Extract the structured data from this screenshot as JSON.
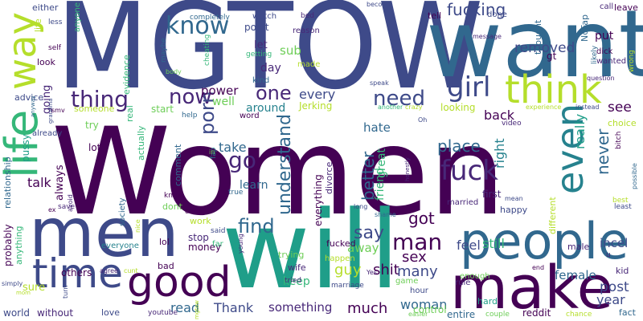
{
  "palette": {
    "background": "#ffffff",
    "deep_purple": "#440154",
    "indigo": "#482878",
    "blue_purple": "#3e4a89",
    "slate_blue": "#31688e",
    "teal": "#26828e",
    "green_teal": "#1f9e89",
    "green": "#35b779",
    "lime": "#6ece58",
    "yellow_green": "#b5de2b",
    "yellow": "#fde725"
  },
  "words": [
    {
      "text": "Women",
      "color": "#440154"
    },
    {
      "text": "MGTOW",
      "color": "#3e4a89"
    },
    {
      "text": "want",
      "color": "#31688e"
    },
    {
      "text": "will",
      "color": "#1f9e89"
    },
    {
      "text": "men",
      "color": "#3e4a89"
    },
    {
      "text": "people",
      "color": "#31688e"
    },
    {
      "text": "make",
      "color": "#440154"
    },
    {
      "text": "good",
      "color": "#440154"
    },
    {
      "text": "time",
      "color": "#3e4a89"
    },
    {
      "text": "life",
      "color": "#35b779"
    },
    {
      "text": "way",
      "color": "#b5de2b"
    },
    {
      "text": "think",
      "color": "#b5de2b"
    },
    {
      "text": "girl",
      "color": "#3e4a89"
    },
    {
      "text": "even",
      "color": "#26828e"
    },
    {
      "text": "know",
      "color": "#31688e"
    },
    {
      "text": "now",
      "color": "#482878"
    },
    {
      "text": "thing",
      "color": "#482878"
    },
    {
      "text": "porn",
      "color": "#3e4a89"
    },
    {
      "text": "one",
      "color": "#482878"
    },
    {
      "text": "need",
      "color": "#3e4a89"
    },
    {
      "text": "fuck",
      "color": "#482878"
    },
    {
      "text": "go",
      "color": "#482878"
    },
    {
      "text": "find",
      "color": "#31688e"
    },
    {
      "text": "man",
      "color": "#440154"
    },
    {
      "text": "say",
      "color": "#3e4a89"
    },
    {
      "text": "got",
      "color": "#440154"
    },
    {
      "text": "fucking",
      "color": "#3e4a89"
    },
    {
      "text": "removed",
      "color": "#3e4a89"
    },
    {
      "text": "understand",
      "color": "#31688e"
    },
    {
      "text": "better",
      "color": "#31688e"
    },
    {
      "text": "place",
      "color": "#31688e"
    },
    {
      "text": "never",
      "color": "#31688e"
    },
    {
      "text": "post",
      "color": "#3e4a89"
    },
    {
      "text": "year",
      "color": "#3e4a89"
    },
    {
      "text": "shit",
      "color": "#440154"
    },
    {
      "text": "many",
      "color": "#3e4a89"
    },
    {
      "text": "guy",
      "color": "#b5de2b"
    },
    {
      "text": "sex",
      "color": "#440154"
    },
    {
      "text": "much",
      "color": "#440154"
    },
    {
      "text": "woman",
      "color": "#31688e"
    },
    {
      "text": "feel",
      "color": "#3e4a89"
    },
    {
      "text": "still",
      "color": "#35b779"
    },
    {
      "text": "female",
      "color": "#31688e"
    },
    {
      "text": "incel",
      "color": "#3e4a89"
    },
    {
      "text": "talk",
      "color": "#440154"
    },
    {
      "text": "learn",
      "color": "#31688e"
    },
    {
      "text": "take",
      "color": "#31688e"
    },
    {
      "text": "power",
      "color": "#440154"
    },
    {
      "text": "every",
      "color": "#3e4a89"
    },
    {
      "text": "sub",
      "color": "#6ece58"
    },
    {
      "text": "let",
      "color": "#482878"
    },
    {
      "text": "day",
      "color": "#482878"
    },
    {
      "text": "hate",
      "color": "#31688e"
    },
    {
      "text": "away",
      "color": "#6ece58"
    },
    {
      "text": "keep",
      "color": "#35b779"
    },
    {
      "text": "read",
      "color": "#31688e"
    },
    {
      "text": "Thank",
      "color": "#3e4a89"
    },
    {
      "text": "something",
      "color": "#482878"
    },
    {
      "text": "see",
      "color": "#440154"
    },
    {
      "text": "back",
      "color": "#440154"
    },
    {
      "text": "really",
      "color": "#1f9e89"
    },
    {
      "text": "right",
      "color": "#26828e"
    },
    {
      "text": "put",
      "color": "#440154"
    },
    {
      "text": "well",
      "color": "#6ece58"
    },
    {
      "text": "around",
      "color": "#26828e"
    },
    {
      "text": "Jerking",
      "color": "#b5de2b"
    },
    {
      "text": "point",
      "color": "#3e4a89"
    },
    {
      "text": "watch",
      "color": "#3e4a89"
    },
    {
      "text": "reason",
      "color": "#482878"
    },
    {
      "text": "made",
      "color": "#b5de2b"
    },
    {
      "text": "kind",
      "color": "#31688e"
    },
    {
      "text": "getting",
      "color": "#35b779"
    },
    {
      "text": "looking",
      "color": "#b5de2b"
    },
    {
      "text": "great",
      "color": "#35b779"
    },
    {
      "text": "friend",
      "color": "#35b779"
    },
    {
      "text": "first",
      "color": "#482878"
    },
    {
      "text": "married",
      "color": "#482878"
    },
    {
      "text": "happy",
      "color": "#3e4a89"
    },
    {
      "text": "different",
      "color": "#b5de2b"
    },
    {
      "text": "male",
      "color": "#482878"
    },
    {
      "text": "kid",
      "color": "#482878"
    },
    {
      "text": "fact",
      "color": "#31688e"
    },
    {
      "text": "everything",
      "color": "#440154"
    },
    {
      "text": "divorce",
      "color": "#482878"
    },
    {
      "text": "trying",
      "color": "#6ece58"
    },
    {
      "text": "fucked",
      "color": "#440154"
    },
    {
      "text": "hour",
      "color": "#3e4a89"
    },
    {
      "text": "game",
      "color": "#6ece58"
    },
    {
      "text": "rule",
      "color": "#482878"
    },
    {
      "text": "enough",
      "color": "#6ece58"
    },
    {
      "text": "entire",
      "color": "#31688e"
    },
    {
      "text": "reddit",
      "color": "#440154"
    },
    {
      "text": "couple",
      "color": "#6ece58"
    },
    {
      "text": "chance",
      "color": "#b5de2b"
    },
    {
      "text": "easier",
      "color": "#6ece58"
    },
    {
      "text": "control",
      "color": "#6ece58"
    },
    {
      "text": "love",
      "color": "#3e4a89"
    },
    {
      "text": "youtube",
      "color": "#482878"
    },
    {
      "text": "without",
      "color": "#482878"
    },
    {
      "text": "world",
      "color": "#3e4a89"
    },
    {
      "text": "others",
      "color": "#440154"
    },
    {
      "text": "agree",
      "color": "#482878"
    },
    {
      "text": "sure",
      "color": "#b5de2b"
    },
    {
      "text": "simply",
      "color": "#3e4a89"
    },
    {
      "text": "probably",
      "color": "#440154"
    },
    {
      "text": "anything",
      "color": "#35b779"
    },
    {
      "text": "relationship",
      "color": "#31688e"
    },
    {
      "text": "pussy",
      "color": "#1f9e89"
    },
    {
      "text": "going",
      "color": "#482878"
    },
    {
      "text": "advice",
      "color": "#3e4a89"
    },
    {
      "text": "look",
      "color": "#440154"
    },
    {
      "text": "self",
      "color": "#440154"
    },
    {
      "text": "either",
      "color": "#3e4a89"
    },
    {
      "text": "anyone",
      "color": "#35b779"
    },
    {
      "text": "less",
      "color": "#3e4a89"
    },
    {
      "text": "life",
      "color": "#b5de2b"
    },
    {
      "text": "evidence",
      "color": "#35b779"
    },
    {
      "text": "real",
      "color": "#35b779"
    },
    {
      "text": "always",
      "color": "#440154"
    },
    {
      "text": "someone",
      "color": "#b5de2b"
    },
    {
      "text": "try",
      "color": "#6ece58"
    },
    {
      "text": "actually",
      "color": "#35b779"
    },
    {
      "text": "start",
      "color": "#6ece58"
    },
    {
      "text": "help",
      "color": "#31688e"
    },
    {
      "text": "comment",
      "color": "#31688e"
    },
    {
      "text": "dont",
      "color": "#6ece58"
    },
    {
      "text": "work",
      "color": "#b5de2b"
    },
    {
      "text": "money",
      "color": "#440154"
    },
    {
      "text": "stop",
      "color": "#482878"
    },
    {
      "text": "lol",
      "color": "#440154"
    },
    {
      "text": "bad",
      "color": "#440154"
    },
    {
      "text": "everyone",
      "color": "#26828e"
    },
    {
      "text": "society",
      "color": "#31688e"
    },
    {
      "text": "maybe",
      "color": "#31688e"
    },
    {
      "text": "completely",
      "color": "#31688e"
    },
    {
      "text": "cheating",
      "color": "#35b779"
    },
    {
      "text": "body",
      "color": "#6ece58"
    },
    {
      "text": "word",
      "color": "#440154"
    },
    {
      "text": "fap",
      "color": "#26828e"
    },
    {
      "text": "knew",
      "color": "#440154"
    },
    {
      "text": "care",
      "color": "#440154"
    },
    {
      "text": "said",
      "color": "#3e4a89"
    },
    {
      "text": "far",
      "color": "#35b779"
    },
    {
      "text": "true",
      "color": "#31688e"
    },
    {
      "text": "wife",
      "color": "#482878"
    },
    {
      "text": "tried",
      "color": "#482878"
    },
    {
      "text": "marriage",
      "color": "#3e4a89"
    },
    {
      "text": "happen",
      "color": "#b5de2b"
    },
    {
      "text": "Yes",
      "color": "#482878"
    },
    {
      "text": "bed",
      "color": "#482878"
    },
    {
      "text": "become",
      "color": "#3e4a89"
    },
    {
      "text": "tell",
      "color": "#440154"
    },
    {
      "text": "done",
      "color": "#3e4a89"
    },
    {
      "text": "call",
      "color": "#482878"
    },
    {
      "text": "leave",
      "color": "#440154"
    },
    {
      "text": "wanted",
      "color": "#482878"
    },
    {
      "text": "dick",
      "color": "#440154"
    },
    {
      "text": "NoFap",
      "color": "#31688e"
    },
    {
      "text": "gt",
      "color": "#440154"
    },
    {
      "text": "thought",
      "color": "#31688e"
    },
    {
      "text": "message",
      "color": "#482878"
    },
    {
      "text": "question",
      "color": "#482878"
    },
    {
      "text": "likely",
      "color": "#31688e"
    },
    {
      "text": "wrong",
      "color": "#b5de2b"
    },
    {
      "text": "instead",
      "color": "#3e4a89"
    },
    {
      "text": "experience",
      "color": "#b5de2b"
    },
    {
      "text": "choice",
      "color": "#b5de2b"
    },
    {
      "text": "video",
      "color": "#482878"
    },
    {
      "text": "speak",
      "color": "#3e4a89"
    },
    {
      "text": "another",
      "color": "#35b779"
    },
    {
      "text": "crazy",
      "color": "#b5de2b"
    },
    {
      "text": "Oh",
      "color": "#3e4a89"
    },
    {
      "text": "bitch",
      "color": "#440154"
    },
    {
      "text": "possible",
      "color": "#31688e"
    },
    {
      "text": "best",
      "color": "#b5de2b"
    },
    {
      "text": "least",
      "color": "#3e4a89"
    },
    {
      "text": "mean",
      "color": "#3e4a89"
    },
    {
      "text": "long",
      "color": "#3e4a89"
    },
    {
      "text": "shame",
      "color": "#31688e"
    },
    {
      "text": "honestly",
      "color": "#482878"
    },
    {
      "text": "end",
      "color": "#440154"
    },
    {
      "text": "grandma",
      "color": "#3e4a89"
    },
    {
      "text": "anyway",
      "color": "#31688e"
    },
    {
      "text": "smv",
      "color": "#440154"
    },
    {
      "text": "already",
      "color": "#3e4a89"
    },
    {
      "text": "save",
      "color": "#482878"
    },
    {
      "text": "avoid",
      "color": "#482878"
    },
    {
      "text": "nice",
      "color": "#b5de2b"
    },
    {
      "text": "turn",
      "color": "#3e4a89"
    },
    {
      "text": "cunt",
      "color": "#b5de2b"
    },
    {
      "text": "mom",
      "color": "#b5de2b"
    },
    {
      "text": "ex",
      "color": "#440154"
    },
    {
      "text": "young",
      "color": "#482878"
    },
    {
      "text": "u",
      "color": "#482878"
    },
    {
      "text": "mgtow",
      "color": "#b5de2b"
    },
    {
      "text": "hard",
      "color": "#1f9e89"
    },
    {
      "text": "lot",
      "color": "#440154"
    },
    {
      "text": "in",
      "color": "#6ece58"
    }
  ]
}
